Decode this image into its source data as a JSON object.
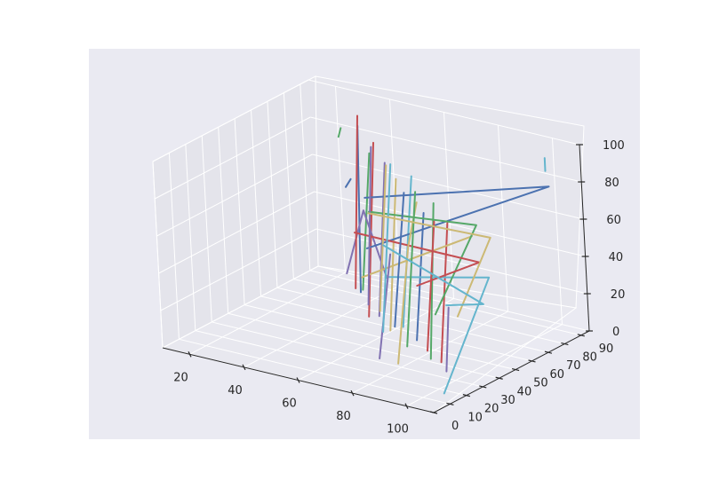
{
  "chart_data": {
    "type": "line",
    "projection": "3d",
    "title": "",
    "xlabel": "",
    "ylabel": "",
    "zlabel": "",
    "xlim": [
      10,
      110
    ],
    "ylim": [
      0,
      95
    ],
    "zlim": [
      0,
      100
    ],
    "x_ticks": [
      20,
      40,
      60,
      80,
      100
    ],
    "y_ticks": [
      0,
      10,
      20,
      30,
      40,
      50,
      60,
      70,
      80,
      90
    ],
    "z_ticks": [
      0,
      20,
      40,
      60,
      80,
      100
    ],
    "grid": true,
    "legend": "none",
    "colors": [
      "#4c72b0",
      "#55a868",
      "#c44e52",
      "#8172b2",
      "#ccb974",
      "#64b5cd"
    ],
    "series": [
      {
        "points": [
          [
            38,
            75,
            5
          ],
          [
            40,
            75,
            95
          ]
        ]
      },
      {
        "points": [
          [
            42,
            70,
            10
          ],
          [
            47,
            70,
            85
          ]
        ]
      },
      {
        "points": [
          [
            50,
            60,
            3
          ],
          [
            55,
            60,
            98
          ]
        ]
      },
      {
        "points": [
          [
            57,
            55,
            8
          ],
          [
            62,
            55,
            92
          ]
        ]
      },
      {
        "points": [
          [
            64,
            50,
            5
          ],
          [
            69,
            50,
            88
          ]
        ]
      },
      {
        "points": [
          [
            72,
            45,
            12
          ],
          [
            78,
            45,
            95
          ]
        ]
      },
      {
        "points": [
          [
            80,
            40,
            10
          ],
          [
            85,
            40,
            80
          ]
        ]
      },
      {
        "points": [
          [
            88,
            35,
            5
          ],
          [
            92,
            35,
            90
          ]
        ]
      },
      {
        "points": [
          [
            95,
            30,
            8
          ],
          [
            100,
            30,
            85
          ]
        ]
      },
      {
        "points": [
          [
            30,
            80,
            10
          ],
          [
            50,
            60,
            60
          ],
          [
            70,
            40,
            40
          ]
        ]
      },
      {
        "points": [
          [
            45,
            65,
            20
          ],
          [
            90,
            60,
            60
          ]
        ]
      },
      {
        "points": [
          [
            60,
            55,
            30
          ],
          [
            105,
            45,
            50
          ],
          [
            108,
            10,
            5
          ]
        ]
      },
      {
        "points": [
          [
            35,
            85,
            50
          ],
          [
            104,
            85,
            80
          ],
          [
            60,
            45,
            50
          ]
        ]
      },
      {
        "points": [
          [
            52,
            60,
            60
          ],
          [
            95,
            55,
            70
          ],
          [
            100,
            20,
            40
          ]
        ]
      },
      {
        "points": [
          [
            40,
            70,
            40
          ],
          [
            86,
            70,
            40
          ],
          [
            100,
            10,
            60
          ]
        ]
      },
      {
        "points": [
          [
            72,
            30,
            2
          ],
          [
            78,
            30,
            60
          ]
        ]
      },
      {
        "points": [
          [
            82,
            25,
            5
          ],
          [
            88,
            25,
            70
          ],
          [
            92,
            25,
            95
          ]
        ]
      },
      {
        "points": [
          [
            103,
            85,
            88
          ],
          [
            103,
            85,
            95
          ]
        ]
      },
      {
        "points": [
          [
            25,
            90,
            50
          ],
          [
            27,
            90,
            55
          ]
        ]
      },
      {
        "points": [
          [
            22,
            92,
            75
          ],
          [
            23,
            92,
            80
          ]
        ]
      },
      {
        "points": [
          [
            33,
            80,
            3
          ],
          [
            37,
            80,
            97
          ]
        ]
      },
      {
        "points": [
          [
            45,
            68,
            4
          ],
          [
            49,
            68,
            90
          ]
        ]
      },
      {
        "points": [
          [
            53,
            62,
            6
          ],
          [
            58,
            62,
            86
          ]
        ]
      },
      {
        "points": [
          [
            60,
            52,
            2
          ],
          [
            66,
            52,
            94
          ]
        ]
      },
      {
        "points": [
          [
            67,
            48,
            9
          ],
          [
            73,
            48,
            83
          ]
        ]
      },
      {
        "points": [
          [
            75,
            42,
            4
          ],
          [
            81,
            42,
            89
          ]
        ]
      },
      {
        "points": [
          [
            85,
            38,
            7
          ],
          [
            90,
            38,
            78
          ]
        ]
      },
      {
        "points": [
          [
            98,
            28,
            5
          ],
          [
            100,
            28,
            40
          ]
        ]
      },
      {
        "points": [
          [
            48,
            66,
            55
          ],
          [
            100,
            55,
            65
          ],
          [
            102,
            30,
            35
          ]
        ]
      },
      {
        "points": [
          [
            58,
            58,
            45
          ],
          [
            98,
            52,
            30
          ],
          [
            103,
            22,
            45
          ]
        ]
      }
    ]
  }
}
